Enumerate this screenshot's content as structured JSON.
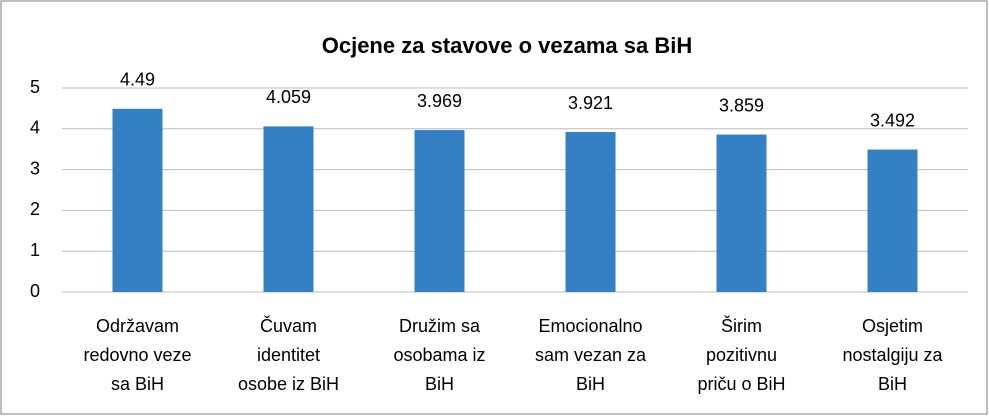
{
  "chart_data": {
    "type": "bar",
    "title": "Ocjene za stavove o vezama sa BiH",
    "categories": [
      "Održavam\nredovno veze\nsa BiH",
      "Čuvam\nidentitet\nosobe iz BiH",
      "Družim sa\nosobama iz\nBiH",
      "Emocionalno\nsam vezan za\nBiH",
      "Širim\npozitivnu\npriču o BiH",
      "Osjetim\nnostalgiju za\nBiH"
    ],
    "values": [
      4.49,
      4.059,
      3.969,
      3.921,
      3.859,
      3.492
    ],
    "color": "#3380c4",
    "ylim": [
      0,
      5
    ],
    "yticks": [
      0,
      1,
      2,
      3,
      4,
      5
    ],
    "grid": true
  }
}
